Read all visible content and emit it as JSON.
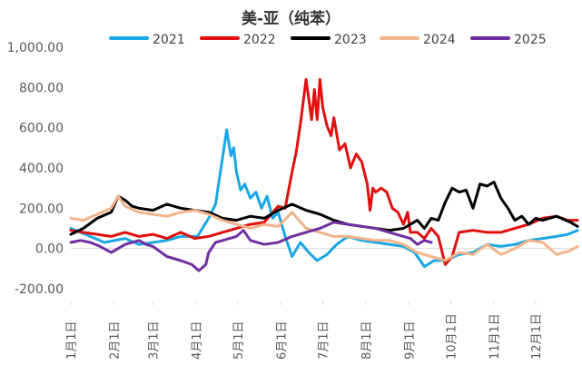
{
  "chart_data": {
    "type": "line",
    "title": "美-亚（纯苯）",
    "xlabel": "",
    "ylabel": "",
    "ylim": [
      -200,
      1000
    ],
    "yticks": [
      -200,
      0,
      200,
      400,
      600,
      800,
      1000
    ],
    "ytick_labels": [
      "-200.00",
      "0.00",
      "200.00",
      "400.00",
      "600.00",
      "800.00",
      "1,000.00"
    ],
    "xlim": [
      1,
      365
    ],
    "x_unit": "day of year",
    "xticks": [
      1,
      32,
      60,
      91,
      121,
      152,
      182,
      213,
      244,
      274,
      305,
      335
    ],
    "xtick_labels": [
      "1月1日",
      "2月1日",
      "3月1日",
      "4月1日",
      "5月1日",
      "6月1日",
      "7月1日",
      "8月1日",
      "9月1日",
      "10月1日",
      "11月1日",
      "12月1日"
    ],
    "grid": false,
    "legend_position": "top",
    "series": [
      {
        "name": "2021",
        "color": "#1aa7e6",
        "x": [
          1,
          8,
          15,
          25,
          40,
          50,
          60,
          70,
          80,
          92,
          100,
          105,
          110,
          113,
          116,
          118,
          120,
          123,
          126,
          130,
          134,
          138,
          142,
          146,
          150,
          155,
          160,
          166,
          172,
          178,
          185,
          192,
          200,
          210,
          220,
          230,
          240,
          248,
          255,
          262,
          270,
          280,
          290,
          300,
          310,
          320,
          330,
          340,
          350,
          358,
          365
        ],
        "y": [
          100,
          80,
          60,
          30,
          50,
          20,
          30,
          40,
          60,
          60,
          150,
          220,
          450,
          590,
          460,
          500,
          380,
          290,
          320,
          250,
          280,
          200,
          260,
          150,
          180,
          60,
          -40,
          30,
          -20,
          -60,
          -30,
          20,
          60,
          40,
          30,
          20,
          10,
          -20,
          -90,
          -60,
          -60,
          -30,
          -20,
          20,
          10,
          20,
          40,
          50,
          60,
          70,
          90
        ]
      },
      {
        "name": "2022",
        "color": "#e01010",
        "x": [
          1,
          10,
          20,
          30,
          40,
          50,
          60,
          70,
          80,
          90,
          100,
          110,
          120,
          130,
          140,
          150,
          155,
          160,
          163,
          166,
          170,
          174,
          176,
          178,
          180,
          182,
          185,
          188,
          190,
          194,
          198,
          202,
          206,
          210,
          214,
          216,
          218,
          220,
          224,
          228,
          232,
          236,
          240,
          243,
          245,
          250,
          255,
          260,
          265,
          270,
          275,
          280,
          290,
          300,
          310,
          320,
          330,
          340,
          350,
          358,
          365
        ],
        "y": [
          90,
          80,
          70,
          60,
          80,
          60,
          70,
          50,
          80,
          50,
          60,
          80,
          100,
          120,
          130,
          210,
          200,
          380,
          480,
          620,
          840,
          640,
          790,
          640,
          840,
          700,
          610,
          560,
          650,
          490,
          520,
          400,
          470,
          430,
          320,
          190,
          300,
          280,
          300,
          280,
          200,
          180,
          120,
          180,
          80,
          80,
          50,
          100,
          60,
          -80,
          -40,
          80,
          90,
          80,
          80,
          100,
          120,
          150,
          160,
          140,
          140
        ]
      },
      {
        "name": "2023",
        "color": "#000000",
        "x": [
          1,
          10,
          20,
          30,
          35,
          40,
          45,
          50,
          60,
          70,
          80,
          90,
          100,
          110,
          120,
          130,
          140,
          150,
          160,
          170,
          180,
          190,
          200,
          210,
          220,
          230,
          240,
          250,
          255,
          260,
          265,
          270,
          275,
          280,
          285,
          290,
          295,
          300,
          305,
          310,
          315,
          320,
          325,
          330,
          335,
          340,
          350,
          360,
          365
        ],
        "y": [
          70,
          100,
          150,
          180,
          260,
          240,
          210,
          200,
          190,
          220,
          200,
          190,
          180,
          150,
          140,
          160,
          150,
          190,
          220,
          190,
          170,
          140,
          120,
          110,
          100,
          90,
          100,
          140,
          100,
          150,
          140,
          230,
          300,
          280,
          290,
          200,
          320,
          310,
          330,
          250,
          200,
          140,
          160,
          120,
          150,
          140,
          160,
          130,
          110
        ]
      },
      {
        "name": "2024",
        "color": "#f2b48a",
        "x": [
          1,
          10,
          20,
          30,
          35,
          40,
          50,
          60,
          70,
          80,
          90,
          100,
          110,
          120,
          130,
          140,
          150,
          160,
          170,
          180,
          190,
          200,
          210,
          220,
          230,
          240,
          245,
          250,
          260,
          270,
          280,
          290,
          300,
          310,
          320,
          330,
          340,
          350,
          360,
          365
        ],
        "y": [
          150,
          140,
          170,
          200,
          260,
          210,
          180,
          170,
          160,
          180,
          190,
          170,
          140,
          120,
          100,
          120,
          110,
          180,
          100,
          80,
          60,
          60,
          50,
          40,
          40,
          20,
          0,
          -20,
          -40,
          -60,
          -20,
          -30,
          20,
          -30,
          0,
          40,
          30,
          -30,
          -10,
          10
        ]
      },
      {
        "name": "2025",
        "color": "#7030a0",
        "x": [
          1,
          8,
          15,
          22,
          30,
          40,
          50,
          55,
          60,
          70,
          80,
          88,
          93,
          98,
          100,
          105,
          110,
          115,
          120,
          125,
          130,
          140,
          150,
          160,
          170,
          180,
          190,
          200,
          210,
          220,
          230,
          240,
          245,
          250,
          255,
          260
        ],
        "y": [
          30,
          40,
          30,
          10,
          -20,
          20,
          40,
          20,
          10,
          -40,
          -60,
          -80,
          -110,
          -80,
          -20,
          30,
          40,
          50,
          60,
          90,
          40,
          20,
          30,
          60,
          80,
          100,
          130,
          120,
          110,
          100,
          80,
          60,
          50,
          20,
          40,
          30
        ]
      }
    ]
  }
}
